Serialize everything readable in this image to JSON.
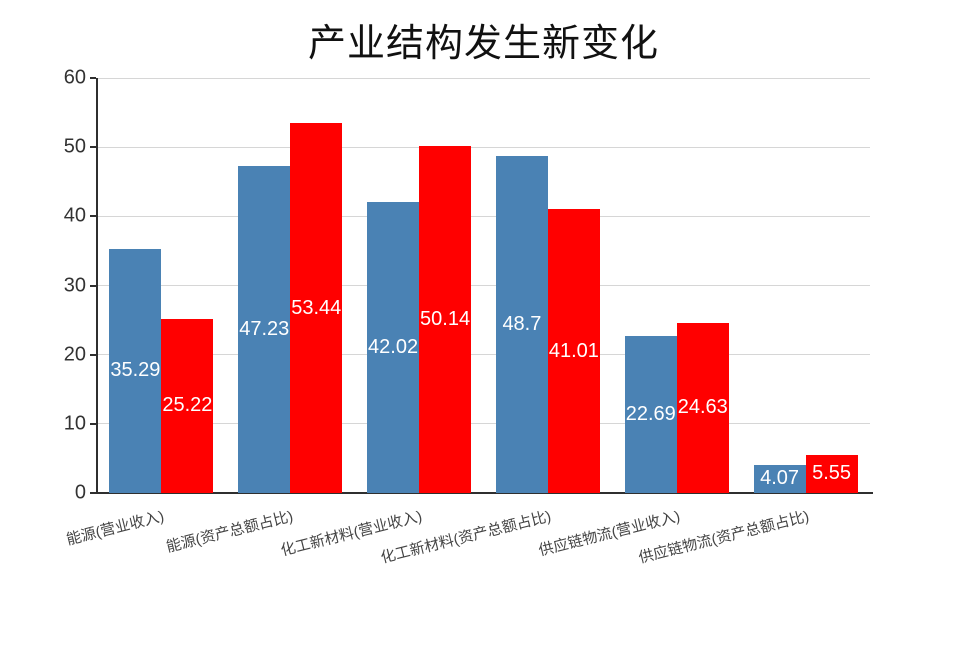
{
  "chart_data": {
    "type": "bar",
    "title": "产业结构发生新变化",
    "xlabel": "",
    "ylabel": "",
    "categories": [
      "能源(营业收入)",
      "能源(资产总额占比)",
      "化工新材料(营业收入)",
      "化工新材料(资产总额占比)",
      "供应链物流(营业收入)",
      "供应链物流(资产总额占比)"
    ],
    "series": [
      {
        "name": "blue",
        "color": "#4A82B4",
        "values": [
          35.29,
          47.23,
          42.02,
          48.7,
          22.69,
          4.07
        ]
      },
      {
        "name": "red",
        "color": "#FF0000",
        "values": [
          25.22,
          53.44,
          50.14,
          41.01,
          24.63,
          5.55
        ]
      }
    ],
    "ylim": [
      0,
      60
    ],
    "yticks": [
      0,
      10,
      20,
      30,
      40,
      50,
      60
    ],
    "grid": true,
    "legend_position": "none",
    "value_labels": "inside-center-white",
    "axis_color": "#2f2f2f",
    "gridline_color": "#d6d6d6",
    "xlabel_rotation_deg": -14
  }
}
